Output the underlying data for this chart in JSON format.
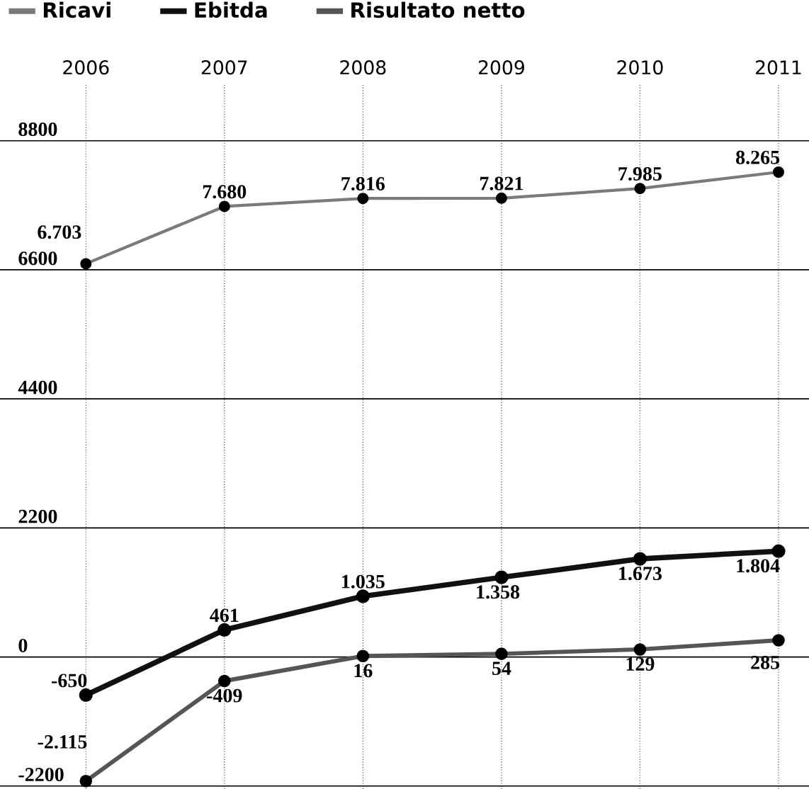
{
  "chart_data": {
    "type": "line",
    "categories": [
      "2006",
      "2007",
      "2008",
      "2009",
      "2010",
      "2011"
    ],
    "series": [
      {
        "name": "Ricavi",
        "color": "#7a7a7a",
        "values": [
          6703,
          7680,
          7816,
          7821,
          7985,
          8265
        ],
        "value_labels": [
          "6.703",
          "7.680",
          "7.816",
          "7.821",
          "7.985",
          "8.265"
        ]
      },
      {
        "name": "Ebitda",
        "color": "#111111",
        "values": [
          -650,
          461,
          1035,
          1358,
          1673,
          1804
        ],
        "value_labels": [
          "-650",
          "461",
          "1.035",
          "1.358",
          "1.673",
          "1.804"
        ]
      },
      {
        "name": "Risultato netto",
        "color": "#555555",
        "values": [
          -2115,
          -409,
          16,
          54,
          129,
          285
        ],
        "value_labels": [
          "-2.115",
          "-409",
          "16",
          "54",
          "129",
          "285"
        ]
      }
    ],
    "ylim": [
      -2250,
      9750
    ],
    "yticks": [
      -2200,
      0,
      2200,
      4400,
      6600,
      8800
    ],
    "grid": true,
    "legend": "top left",
    "marker": "circle",
    "line_style": "solid"
  }
}
